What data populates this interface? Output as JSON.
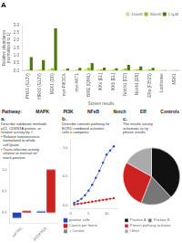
{
  "chart_data": [
    {
      "type": "bar",
      "title": "A",
      "xlabel": "Screen results",
      "ylabel": "Relative abundance\n(normalized to 1)",
      "categories": [
        "PHAS (G12V)",
        "HRAS (G12V)",
        "MEK1 (DD)",
        "myr-PIK3CA",
        "myr-AKT1",
        "BIKE (Q84L)",
        "IKKe [EL]",
        "IKKb [EL]",
        "Notch1 [CD]",
        "Notch1 [EB]",
        "ERa (F352S)",
        "Luciferase",
        "MEK1"
      ],
      "series": [
        {
          "name": "150nM",
          "color": "#c8e08a",
          "values": [
            0.05,
            0.05,
            0.1,
            0.04,
            0.04,
            0.12,
            0.06,
            0.05,
            0.1,
            0.07,
            0.06,
            0.03,
            0.03
          ]
        },
        {
          "name": "300nM",
          "color": "#90c030",
          "values": [
            0.07,
            0.07,
            0.15,
            0.05,
            0.05,
            0.18,
            0.08,
            0.07,
            0.14,
            0.1,
            0.08,
            0.03,
            0.03
          ]
        },
        {
          "name": "1.5μM",
          "color": "#4a7a10",
          "values": [
            0.9,
            0.7,
            2.8,
            0.14,
            0.18,
            0.5,
            0.2,
            0.16,
            0.38,
            0.28,
            0.18,
            0.03,
            0.03
          ]
        }
      ],
      "ylim": [
        0,
        3.0
      ],
      "yticks": [
        {
          "value": 0,
          "label": "0.0"
        },
        {
          "value": 0.5,
          "label": "0.5"
        },
        {
          "value": 1,
          "label": "1.0"
        },
        {
          "value": 1.5,
          "label": "1.5"
        },
        {
          "value": 2,
          "label": "2.0"
        },
        {
          "value": 2.5,
          "label": "2.5"
        },
        {
          "value": 3,
          "label": "3.0"
        }
      ],
      "grid": false,
      "legend": "upper right",
      "annotations": [
        "Pathway:",
        "MAPK",
        "PI3K",
        "NFκB",
        "Notch",
        "ER",
        "Controls"
      ]
    },
    {
      "type": "bar",
      "title": "a.",
      "annotations": [
        "Describe validation methods",
        "p21, CDKN1A protein, or",
        "relative activity by #",
        "• Relative luminescence",
        "  normalized to whole",
        "  cell lysate",
        "• Trans-infection activity",
        "  relative to internal ref",
        "  mock-positive"
      ],
      "categories": [
        "siCTRL",
        "siCDKN1A"
      ],
      "series": [
        {
          "color": "#2244bb",
          "values": [
            -0.12,
            0.03
          ]
        },
        {
          "color": "#cc2222",
          "values": [
            0.04,
            1.0
          ]
        }
      ],
      "ylim": [
        -0.25,
        1.15
      ],
      "yticks": [
        {
          "value": 0,
          "label": "0.0"
        },
        {
          "value": 0.5,
          "label": "0.5"
        },
        {
          "value": 1,
          "label": "1.0"
        }
      ],
      "grid": false
    },
    {
      "type": "scatter",
      "title": "b.",
      "annotations": [
        "Describe controls pathway for",
        "BCRD combined activities",
        "cells it competes"
      ],
      "x": [
        1,
        2,
        3,
        4,
        5,
        6,
        7,
        8,
        9,
        10,
        11,
        12
      ],
      "series": [
        {
          "name": "positive cells",
          "color": "#2244bb",
          "marker": "circle",
          "line_style": "solid",
          "values": [
            0.05,
            0.08,
            0.12,
            0.18,
            0.26,
            0.36,
            0.48,
            0.6,
            0.74,
            0.88,
            0.95,
            1.02
          ]
        },
        {
          "name": "Counts per frame",
          "color": "#cc2222",
          "marker": "circle",
          "line_style": "solid",
          "values": [
            0.02,
            0.03,
            0.04,
            0.05,
            0.06,
            0.07,
            0.08,
            0.09,
            0.1,
            0.11,
            0.12,
            0.13
          ]
        },
        {
          "name": "+ Control",
          "color": "#888888",
          "values": [
            null,
            null,
            null,
            null,
            null,
            null,
            null,
            null,
            null,
            null,
            null,
            null
          ]
        }
      ],
      "xlim": [
        0,
        13
      ],
      "xticks": [
        0,
        5,
        10
      ],
      "ylim": [
        -0.05,
        1.15
      ],
      "yticks": [
        {
          "value": 0,
          "label": "0.0"
        },
        {
          "value": 0.5,
          "label": "0.5"
        },
        {
          "value": 1,
          "label": "1.0"
        }
      ],
      "grid": false,
      "legend": "lower left"
    },
    {
      "type": "pie",
      "title": "c.",
      "annotations": [
        "The results survey",
        "schematic to try",
        "please results"
      ],
      "categories": [
        "Positive A",
        "Positive B",
        "Proven pathway activator",
        "Other"
      ],
      "values": [
        38,
        18,
        27,
        17
      ],
      "colors": [
        "#111111",
        "#777777",
        "#cc2222",
        "#aaaaaa"
      ],
      "legend": "lower left"
    }
  ]
}
